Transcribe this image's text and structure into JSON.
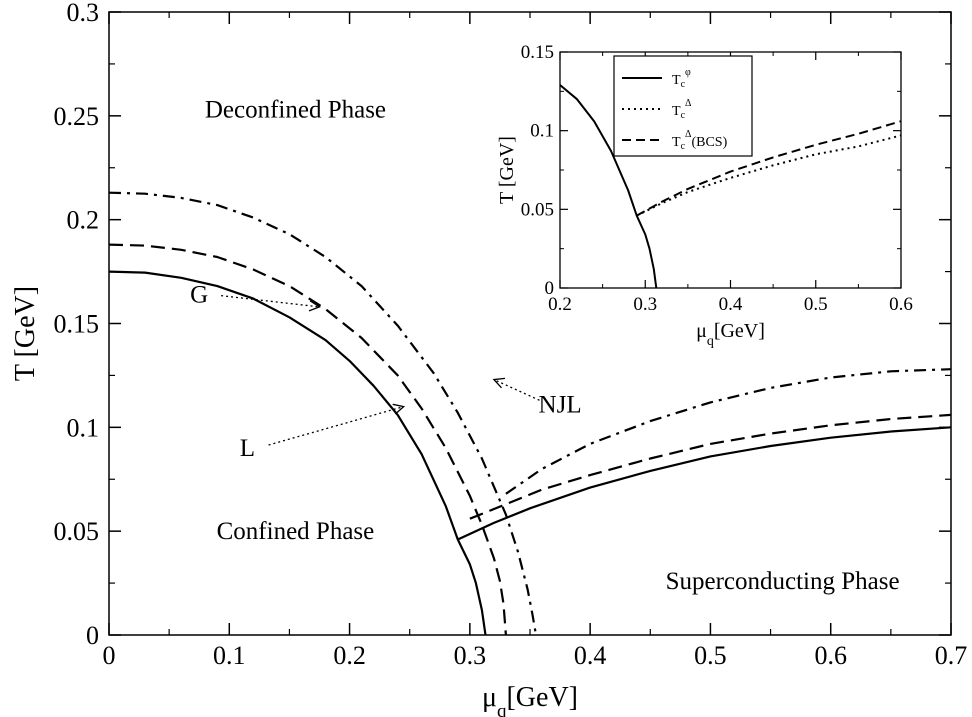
{
  "chart_data": [
    {
      "type": "line",
      "xlabel": "μ",
      "xlabel_sub": "q",
      "xlabel_unit": "[GeV]",
      "ylabel": "T [GeV]",
      "xlim": [
        0,
        0.7
      ],
      "ylim": [
        0,
        0.3
      ],
      "x_ticks": [
        {
          "value": 0,
          "label": "0"
        },
        {
          "value": 0.1,
          "label": "0.1"
        },
        {
          "value": 0.2,
          "label": "0.2"
        },
        {
          "value": 0.3,
          "label": "0.3"
        },
        {
          "value": 0.4,
          "label": "0.4"
        },
        {
          "value": 0.5,
          "label": "0.5"
        },
        {
          "value": 0.6,
          "label": "0.6"
        },
        {
          "value": 0.7,
          "label": "0.7"
        }
      ],
      "y_ticks": [
        {
          "value": 0,
          "label": "0"
        },
        {
          "value": 0.05,
          "label": "0.05"
        },
        {
          "value": 0.1,
          "label": "0.1"
        },
        {
          "value": 0.15,
          "label": "0.15"
        },
        {
          "value": 0.2,
          "label": "0.2"
        },
        {
          "value": 0.25,
          "label": "0.25"
        },
        {
          "value": 0.3,
          "label": "0.3"
        }
      ],
      "grid": false,
      "series": [
        {
          "style": "solid",
          "x": [
            0,
            0.03,
            0.06,
            0.09,
            0.12,
            0.15,
            0.18,
            0.2,
            0.22,
            0.24,
            0.26,
            0.28,
            0.29,
            0.3,
            0.305,
            0.31,
            0.313
          ],
          "y": [
            0.175,
            0.1745,
            0.172,
            0.168,
            0.162,
            0.153,
            0.142,
            0.132,
            0.12,
            0.106,
            0.087,
            0.062,
            0.046,
            0.034,
            0.025,
            0.012,
            0
          ]
        },
        {
          "style": "solid",
          "x": [
            0.29,
            0.32,
            0.35,
            0.4,
            0.45,
            0.5,
            0.55,
            0.6,
            0.65,
            0.7
          ],
          "y": [
            0.046,
            0.054,
            0.061,
            0.071,
            0.079,
            0.086,
            0.091,
            0.095,
            0.098,
            0.1
          ]
        },
        {
          "style": "dashed",
          "x": [
            0,
            0.03,
            0.06,
            0.09,
            0.12,
            0.15,
            0.18,
            0.21,
            0.24,
            0.26,
            0.28,
            0.3,
            0.31,
            0.32,
            0.325,
            0.328,
            0.33
          ],
          "y": [
            0.188,
            0.1875,
            0.1855,
            0.182,
            0.176,
            0.168,
            0.157,
            0.143,
            0.125,
            0.109,
            0.09,
            0.067,
            0.053,
            0.037,
            0.026,
            0.015,
            0
          ]
        },
        {
          "style": "dashed",
          "x": [
            0.3,
            0.33,
            0.36,
            0.4,
            0.45,
            0.5,
            0.55,
            0.6,
            0.65,
            0.7
          ],
          "y": [
            0.056,
            0.063,
            0.07,
            0.077,
            0.085,
            0.092,
            0.097,
            0.101,
            0.104,
            0.106
          ]
        },
        {
          "style": "dashdot",
          "x": [
            0,
            0.03,
            0.06,
            0.09,
            0.12,
            0.15,
            0.18,
            0.21,
            0.24,
            0.27,
            0.29,
            0.31,
            0.33,
            0.34,
            0.348,
            0.352,
            0.355
          ],
          "y": [
            0.213,
            0.2125,
            0.2105,
            0.207,
            0.201,
            0.193,
            0.182,
            0.168,
            0.149,
            0.126,
            0.107,
            0.085,
            0.058,
            0.04,
            0.022,
            0.01,
            0
          ]
        },
        {
          "style": "dashdot",
          "x": [
            0.33,
            0.36,
            0.4,
            0.45,
            0.5,
            0.55,
            0.6,
            0.65,
            0.7
          ],
          "y": [
            0.068,
            0.08,
            0.092,
            0.103,
            0.112,
            0.119,
            0.124,
            0.127,
            0.128
          ]
        }
      ],
      "annotations": [
        {
          "text": "Deconfined Phase",
          "x": 0.155,
          "y": 0.253
        },
        {
          "text": "Confined Phase",
          "x": 0.155,
          "y": 0.05
        },
        {
          "text": "Superconducting Phase",
          "x": 0.56,
          "y": 0.026
        },
        {
          "text": "G",
          "x": 0.075,
          "y": 0.164,
          "arrow_to": [
            0.175,
            0.158
          ]
        },
        {
          "text": "L",
          "x": 0.115,
          "y": 0.09,
          "arrow_to": [
            0.245,
            0.11
          ]
        },
        {
          "text": "NJL",
          "x": 0.375,
          "y": 0.111,
          "arrow_to": [
            0.32,
            0.123
          ]
        }
      ]
    },
    {
      "type": "line",
      "xlabel": "μ",
      "xlabel_sub": "q",
      "xlabel_unit": "[GeV]",
      "ylabel": "T [GeV]",
      "xlim": [
        0.2,
        0.6
      ],
      "ylim": [
        0,
        0.15
      ],
      "x_ticks": [
        {
          "value": 0.2,
          "label": "0.2"
        },
        {
          "value": 0.3,
          "label": "0.3"
        },
        {
          "value": 0.4,
          "label": "0.4"
        },
        {
          "value": 0.5,
          "label": "0.5"
        },
        {
          "value": 0.6,
          "label": "0.6"
        }
      ],
      "y_ticks": [
        {
          "value": 0,
          "label": "0"
        },
        {
          "value": 0.05,
          "label": "0.05"
        },
        {
          "value": 0.1,
          "label": "0.1"
        },
        {
          "value": 0.15,
          "label": "0.15"
        }
      ],
      "grid": false,
      "legend_position": "top-left",
      "series": [
        {
          "name": "T",
          "name_sub": "c",
          "name_sup": "φ",
          "name_suffix": "",
          "style": "solid",
          "x": [
            0.2,
            0.22,
            0.24,
            0.26,
            0.28,
            0.29,
            0.3,
            0.305,
            0.31,
            0.313
          ],
          "y": [
            0.129,
            0.12,
            0.106,
            0.087,
            0.062,
            0.046,
            0.034,
            0.025,
            0.012,
            0
          ]
        },
        {
          "name": "T",
          "name_sub": "c",
          "name_sup": "Δ",
          "name_suffix": "",
          "style": "dotted",
          "x": [
            0.29,
            0.32,
            0.35,
            0.4,
            0.45,
            0.5,
            0.55,
            0.6
          ],
          "y": [
            0.046,
            0.054,
            0.061,
            0.07,
            0.078,
            0.085,
            0.09,
            0.097
          ]
        },
        {
          "name": "T",
          "name_sub": "c",
          "name_sup": "Δ",
          "name_suffix": "(BCS)",
          "style": "dashed",
          "x": [
            0.29,
            0.32,
            0.35,
            0.4,
            0.45,
            0.5,
            0.55,
            0.6
          ],
          "y": [
            0.046,
            0.055,
            0.063,
            0.074,
            0.083,
            0.091,
            0.098,
            0.106
          ]
        }
      ]
    }
  ]
}
